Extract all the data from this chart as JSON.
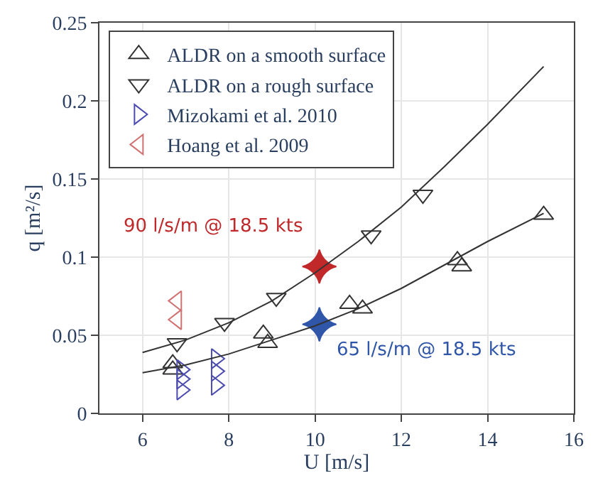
{
  "chart_data": {
    "type": "scatter",
    "xlabel": "U [m/s]",
    "ylabel": "q [m²/s]",
    "xlim": [
      5,
      16
    ],
    "xticks": [
      6,
      8,
      10,
      12,
      14,
      16
    ],
    "ylim": [
      0,
      0.25
    ],
    "yticks": [
      0,
      0.05,
      0.1,
      0.15,
      0.2,
      0.25
    ],
    "grid": true,
    "legend": "top left",
    "series": [
      {
        "name": "ALDR on a smooth surface",
        "color": "#333333",
        "marker": "triangle-up",
        "x": [
          6.7,
          6.7,
          8.8,
          8.9,
          10.8,
          11.1,
          13.3,
          13.4,
          15.3
        ],
        "values": [
          0.032,
          0.028,
          0.051,
          0.045,
          0.07,
          0.067,
          0.098,
          0.094,
          0.127
        ]
      },
      {
        "name": "ALDR on a rough surface",
        "color": "#333333",
        "marker": "triangle-down",
        "x": [
          6.8,
          7.9,
          9.1,
          11.3,
          12.5
        ],
        "values": [
          0.045,
          0.058,
          0.074,
          0.114,
          0.14
        ]
      },
      {
        "name": "Mizokami et al. 2010",
        "color": "#4b4bb0",
        "marker": "triangle-right",
        "x": [
          6.9,
          6.9,
          6.9,
          7.7,
          7.7,
          7.7
        ],
        "values": [
          0.028,
          0.022,
          0.015,
          0.035,
          0.027,
          0.018
        ]
      },
      {
        "name": "Hoang et al. 2009",
        "color": "#d07070",
        "marker": "triangle-left",
        "x": [
          6.8,
          6.8
        ],
        "values": [
          0.072,
          0.06
        ]
      },
      {
        "type": "line",
        "color": "#333333",
        "x": [
          6,
          7,
          8,
          9,
          10,
          11,
          12,
          13,
          14,
          15.3
        ],
        "values": [
          0.039,
          0.047,
          0.058,
          0.072,
          0.09,
          0.11,
          0.132,
          0.158,
          0.185,
          0.222
        ]
      },
      {
        "type": "line",
        "color": "#333333",
        "x": [
          6,
          7,
          8,
          9,
          10,
          11,
          12,
          13,
          14,
          15.3
        ],
        "values": [
          0.026,
          0.031,
          0.038,
          0.047,
          0.056,
          0.067,
          0.08,
          0.095,
          0.11,
          0.128
        ]
      },
      {
        "color": "#c0282a",
        "marker": "star",
        "x": [
          10.1
        ],
        "values": [
          0.094
        ]
      },
      {
        "color": "#2f56a8",
        "marker": "star",
        "x": [
          10.1
        ],
        "values": [
          0.057
        ]
      }
    ],
    "annotations": [
      {
        "text": "90 l/s/m @ 18.5 kts",
        "x": 10.1,
        "y": 0.094
      },
      {
        "text": "65 l/s/m @ 18.5 kts",
        "x": 10.1,
        "y": 0.057
      }
    ]
  }
}
